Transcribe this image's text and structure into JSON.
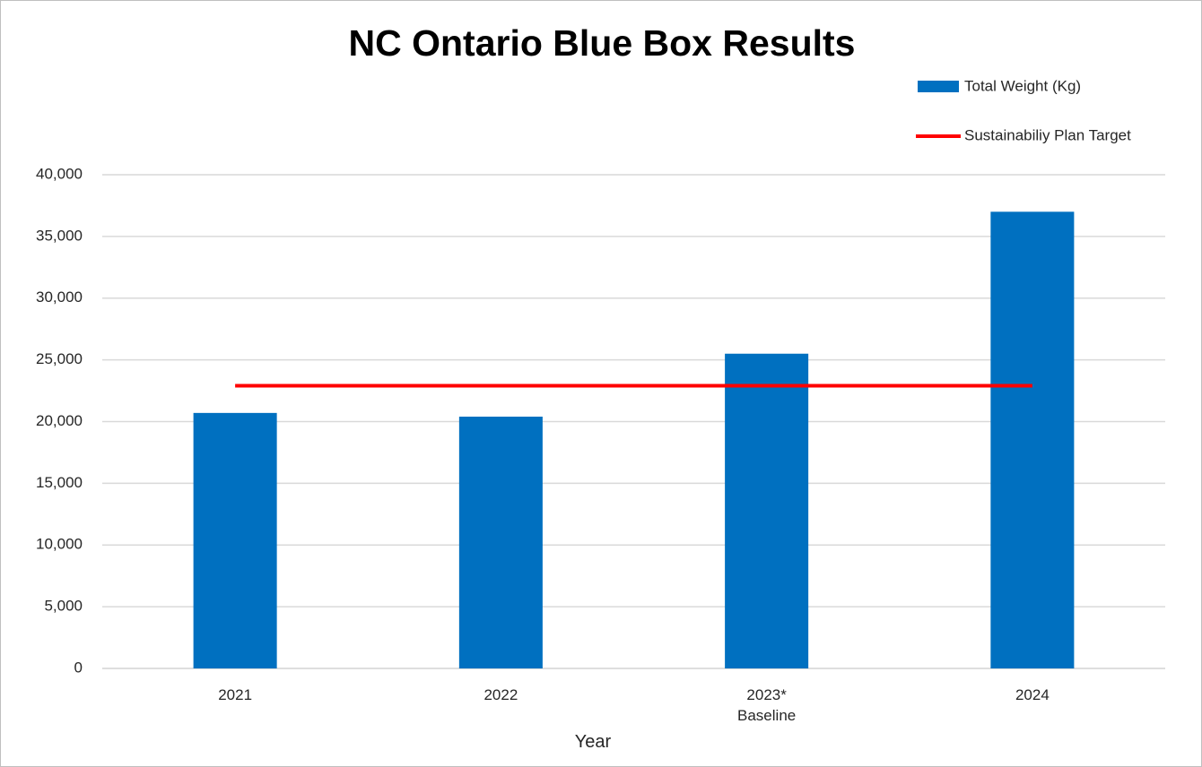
{
  "chart_data": {
    "type": "bar",
    "title": "NC Ontario Blue Box Results",
    "x_label": "Year",
    "categories": [
      "2021",
      "2022",
      "2023*\nBaseline",
      "2024"
    ],
    "series": [
      {
        "name": "Total Weight (Kg)",
        "type": "bar",
        "color": "#0070c0",
        "values": [
          20700,
          20400,
          25500,
          37000
        ]
      },
      {
        "name": "Sustainabiliy Plan Target",
        "type": "line",
        "color": "#ff0000",
        "values": [
          22900,
          22900,
          22900,
          22900
        ]
      }
    ],
    "ylim": [
      0,
      40000
    ],
    "yticks": [
      0,
      {
        "value": 5000,
        "label": "5,000"
      },
      {
        "value": 10000,
        "label": "10,000"
      },
      {
        "value": 15000,
        "label": "15,000"
      },
      {
        "value": 20000,
        "label": "20,000"
      },
      {
        "value": 25000,
        "label": "25,000"
      },
      {
        "value": 30000,
        "label": "30,000"
      },
      {
        "value": 35000,
        "label": "35,000"
      },
      {
        "value": 40000,
        "label": "40,000"
      }
    ],
    "grid": true,
    "legend": "top-right"
  }
}
